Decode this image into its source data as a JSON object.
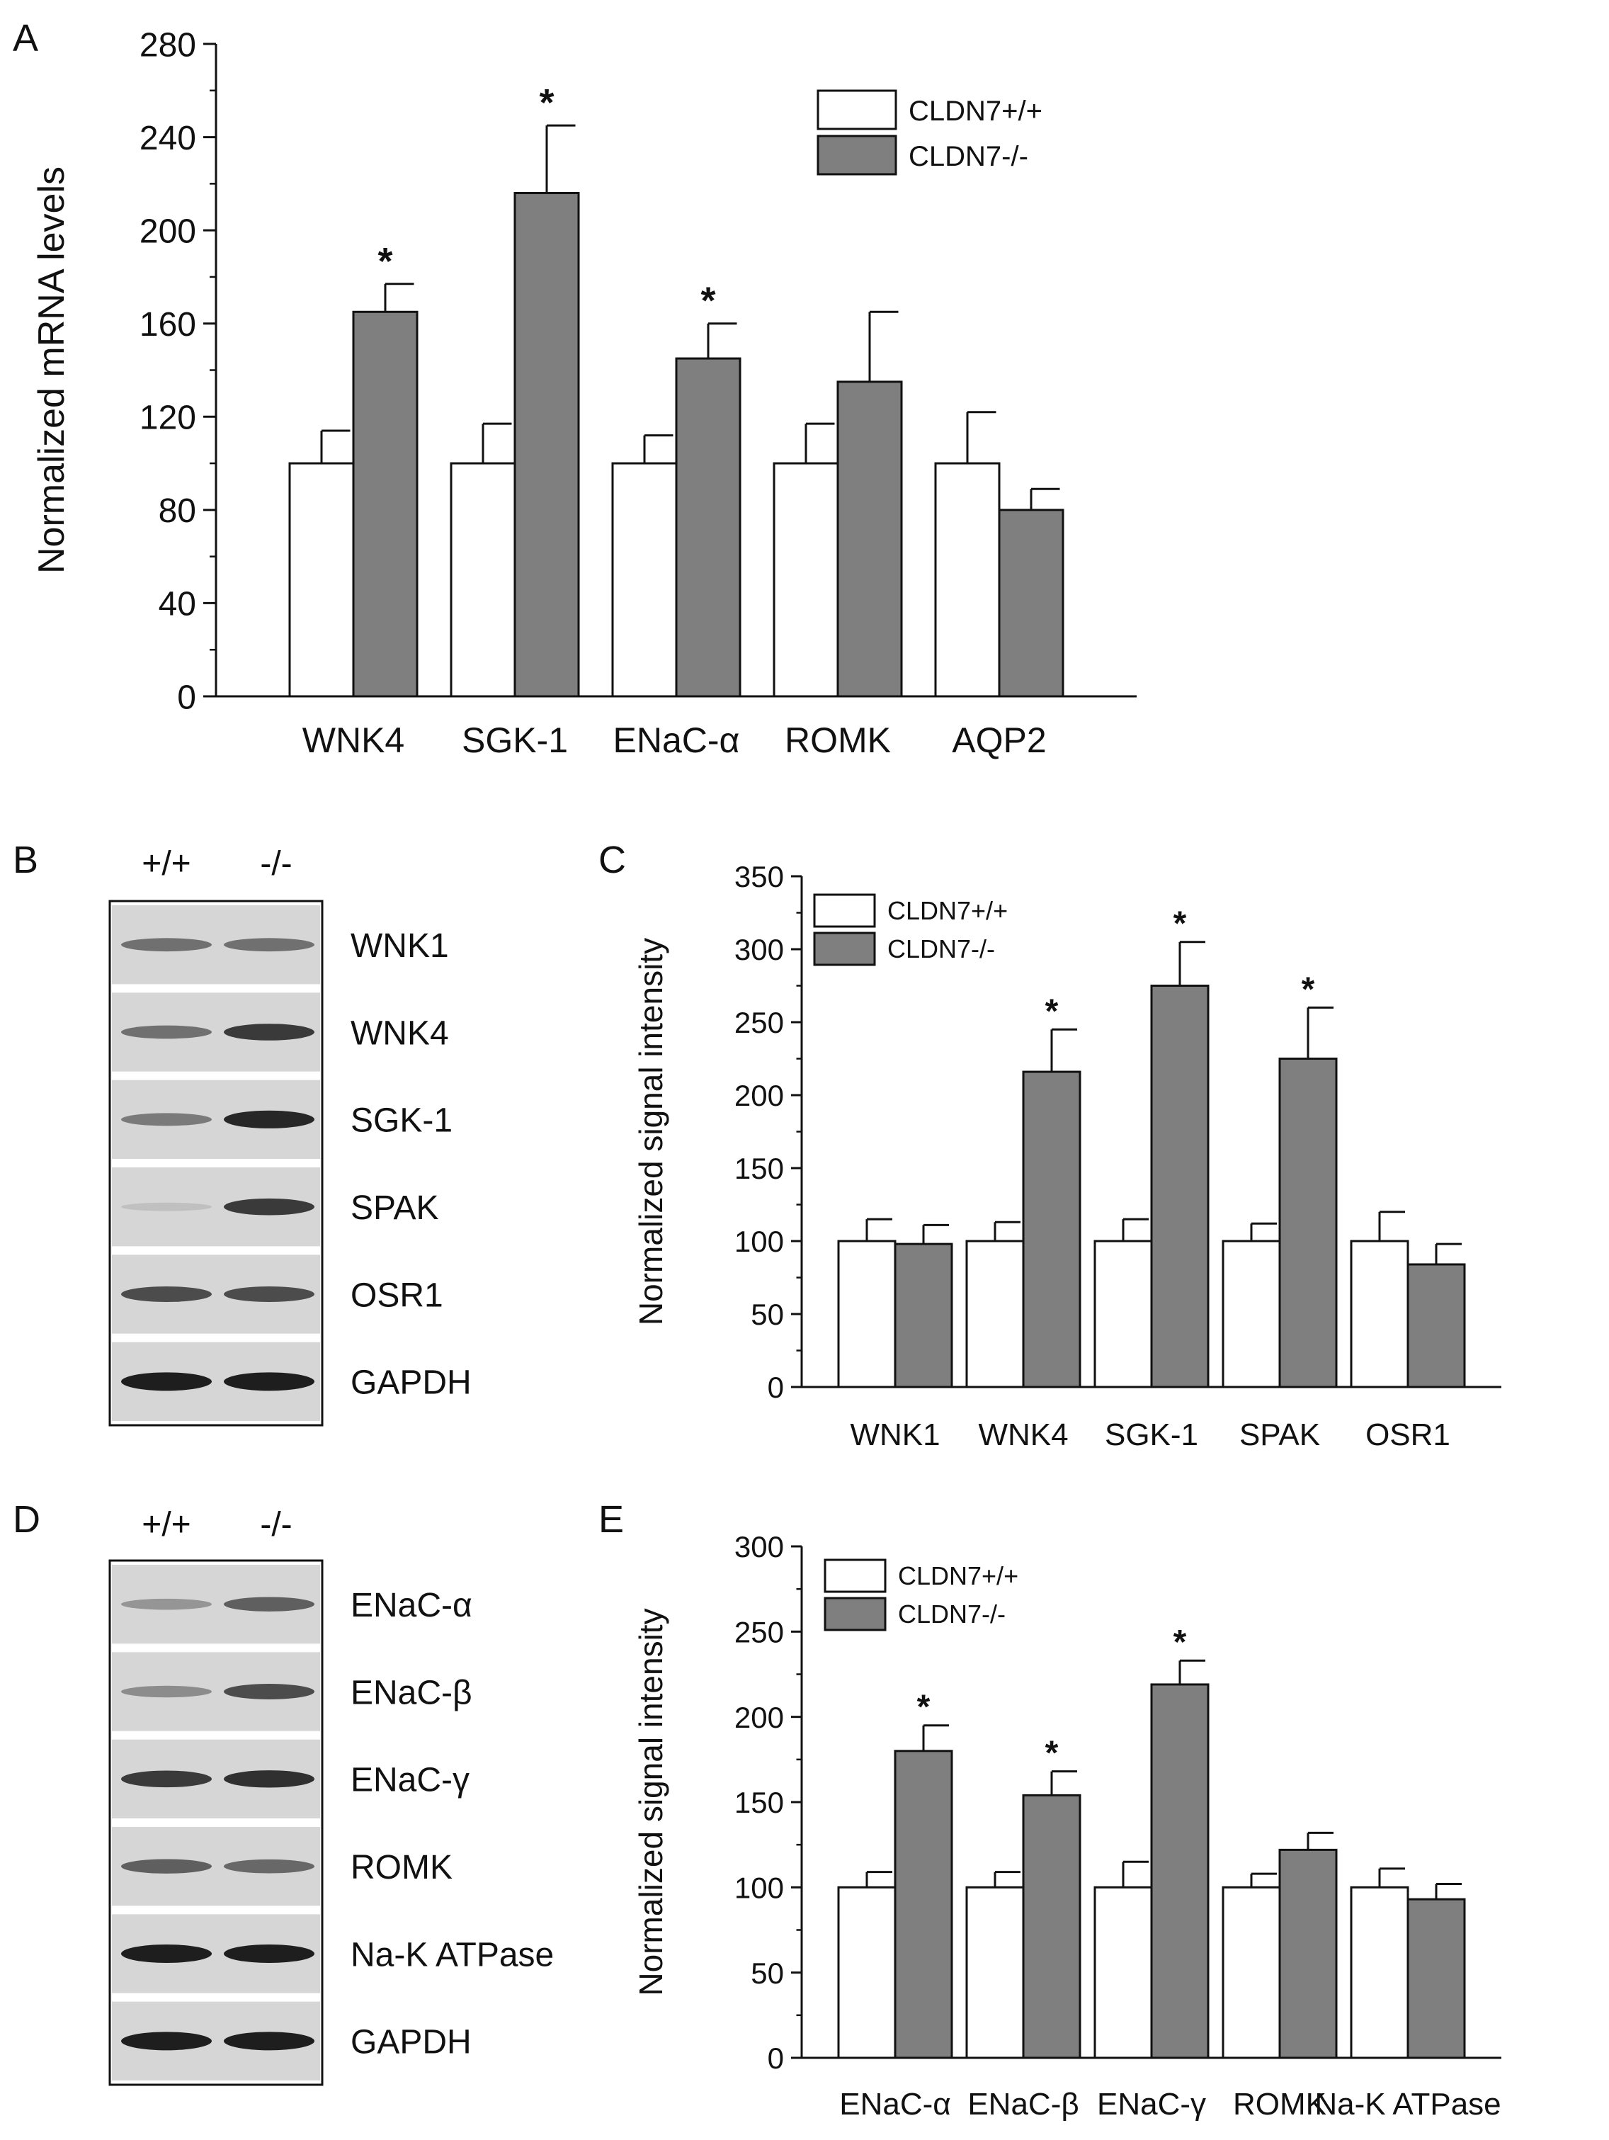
{
  "panels": {
    "A": "A",
    "B": "B",
    "C": "C",
    "D": "D",
    "E": "E"
  },
  "blots": {
    "B": {
      "header": [
        "+/+",
        "-/-"
      ],
      "rows": [
        {
          "label": "WNK1",
          "wt": 0.55,
          "ko": 0.55
        },
        {
          "label": "WNK4",
          "wt": 0.55,
          "ko": 0.85
        },
        {
          "label": "SGK-1",
          "wt": 0.5,
          "ko": 0.95
        },
        {
          "label": "SPAK",
          "wt": 0.12,
          "ko": 0.85
        },
        {
          "label": "OSR1",
          "wt": 0.75,
          "ko": 0.75
        },
        {
          "label": "GAPDH",
          "wt": 1.0,
          "ko": 1.0
        }
      ]
    },
    "D": {
      "header": [
        "+/+",
        "-/-"
      ],
      "rows": [
        {
          "label": "ENaC-α",
          "wt": 0.35,
          "ko": 0.65
        },
        {
          "label": "ENaC-β",
          "wt": 0.4,
          "ko": 0.75
        },
        {
          "label": "ENaC-γ",
          "wt": 0.85,
          "ko": 0.9
        },
        {
          "label": "ROMK",
          "wt": 0.65,
          "ko": 0.6
        },
        {
          "label": "Na-K ATPase",
          "wt": 1.0,
          "ko": 1.0
        },
        {
          "label": "GAPDH",
          "wt": 1.0,
          "ko": 1.0
        }
      ]
    }
  },
  "colors": {
    "wt": "#ffffff",
    "ko": "#7f7f7f",
    "axis": "#111111",
    "blot_bg": "#d6d6d6",
    "band": "#1e1e1e"
  },
  "chart_data": [
    {
      "id": "A",
      "type": "bar",
      "ylabel": "Normalized mRNA levels",
      "ylim": [
        0,
        280
      ],
      "yticks": [
        0,
        40,
        80,
        120,
        160,
        200,
        240,
        280
      ],
      "categories": [
        "WNK4",
        "SGK-1",
        "ENaC-α",
        "ROMK",
        "AQP2"
      ],
      "series": [
        {
          "name": "CLDN7+/+",
          "values": [
            100,
            100,
            100,
            100,
            100
          ],
          "errors": [
            14,
            17,
            12,
            17,
            22
          ]
        },
        {
          "name": "CLDN7-/-",
          "values": [
            165,
            216,
            145,
            135,
            80
          ],
          "errors": [
            12,
            29,
            15,
            30,
            9
          ]
        }
      ],
      "significance": [
        "*",
        "*",
        "*",
        "",
        ""
      ],
      "legend": "top-right"
    },
    {
      "id": "C",
      "type": "bar",
      "ylabel": "Normalized signal intensity",
      "ylim": [
        0,
        350
      ],
      "yticks": [
        0,
        50,
        100,
        150,
        200,
        250,
        300,
        350
      ],
      "categories": [
        "WNK1",
        "WNK4",
        "SGK-1",
        "SPAK",
        "OSR1"
      ],
      "series": [
        {
          "name": "CLDN7+/+",
          "values": [
            100,
            100,
            100,
            100,
            100
          ],
          "errors": [
            15,
            13,
            15,
            12,
            20
          ]
        },
        {
          "name": "CLDN7-/-",
          "values": [
            98,
            216,
            275,
            225,
            84
          ],
          "errors": [
            13,
            29,
            30,
            35,
            14
          ]
        }
      ],
      "significance": [
        "",
        "*",
        "*",
        "*",
        ""
      ],
      "legend": "top-left"
    },
    {
      "id": "E",
      "type": "bar",
      "ylabel": "Normalized signal intensity",
      "ylim": [
        0,
        300
      ],
      "yticks": [
        0,
        50,
        100,
        150,
        200,
        250,
        300
      ],
      "categories": [
        "ENaC-α",
        "ENaC-β",
        "ENaC-γ",
        "ROMK",
        "Na-K ATPase"
      ],
      "series": [
        {
          "name": "CLDN7+/+",
          "values": [
            100,
            100,
            100,
            100,
            100
          ],
          "errors": [
            9,
            9,
            15,
            8,
            11
          ]
        },
        {
          "name": "CLDN7-/-",
          "values": [
            180,
            154,
            219,
            122,
            93
          ],
          "errors": [
            15,
            14,
            14,
            10,
            9
          ]
        }
      ],
      "significance": [
        "*",
        "*",
        "*",
        "",
        ""
      ],
      "legend": "top-left"
    }
  ]
}
